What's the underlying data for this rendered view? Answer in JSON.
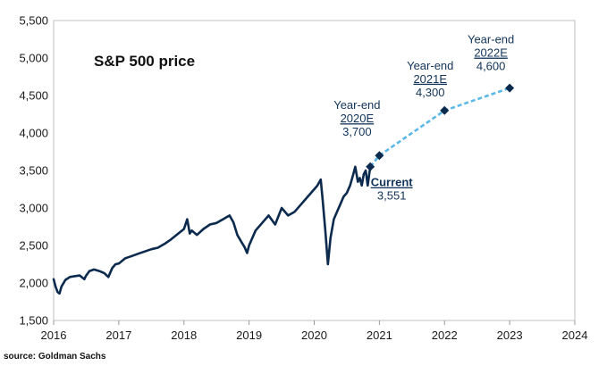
{
  "chart_data": {
    "type": "line",
    "title": "S&P 500 price",
    "source": "source: Goldman Sachs",
    "xlim": [
      2016,
      2024
    ],
    "ylim": [
      1500,
      5500
    ],
    "x_ticks": [
      "2016",
      "2017",
      "2018",
      "2019",
      "2020",
      "2021",
      "2022",
      "2023",
      "2024"
    ],
    "y_ticks": [
      "1,500",
      "2,000",
      "2,500",
      "3,000",
      "3,500",
      "4,000",
      "4,500",
      "5,000",
      "5,500"
    ],
    "colors": {
      "history": "#0b2a4e",
      "forecast": "#5cb8e6",
      "marker": "#0b2a4e",
      "label": "#12345a"
    },
    "series": [
      {
        "name": "S&P 500 price (historical)",
        "style": "solid",
        "x": [
          2016.0,
          2016.03,
          2016.06,
          2016.09,
          2016.12,
          2016.18,
          2016.25,
          2016.32,
          2016.4,
          2016.47,
          2016.5,
          2016.55,
          2016.62,
          2016.7,
          2016.78,
          2016.84,
          2016.9,
          2016.95,
          2017.0,
          2017.1,
          2017.2,
          2017.3,
          2017.4,
          2017.5,
          2017.6,
          2017.7,
          2017.8,
          2017.9,
          2018.0,
          2018.05,
          2018.09,
          2018.12,
          2018.2,
          2018.3,
          2018.4,
          2018.5,
          2018.6,
          2018.7,
          2018.76,
          2018.82,
          2018.88,
          2018.93,
          2018.97,
          2019.0,
          2019.1,
          2019.2,
          2019.3,
          2019.4,
          2019.5,
          2019.6,
          2019.7,
          2019.8,
          2019.9,
          2020.0,
          2020.05,
          2020.1,
          2020.13,
          2020.17,
          2020.21,
          2020.25,
          2020.3,
          2020.35,
          2020.4,
          2020.45,
          2020.5,
          2020.55,
          2020.6,
          2020.63,
          2020.67,
          2020.7,
          2020.73,
          2020.76,
          2020.79,
          2020.82,
          2020.86
        ],
        "y": [
          2050,
          1950,
          1880,
          1860,
          1950,
          2040,
          2080,
          2090,
          2100,
          2050,
          2100,
          2160,
          2180,
          2160,
          2130,
          2080,
          2200,
          2250,
          2260,
          2330,
          2360,
          2390,
          2420,
          2450,
          2470,
          2520,
          2580,
          2650,
          2720,
          2850,
          2660,
          2700,
          2640,
          2720,
          2780,
          2800,
          2850,
          2900,
          2810,
          2640,
          2550,
          2480,
          2400,
          2500,
          2700,
          2800,
          2900,
          2780,
          3000,
          2900,
          2950,
          3050,
          3150,
          3250,
          3300,
          3380,
          3100,
          2700,
          2250,
          2600,
          2850,
          2950,
          3050,
          3150,
          3200,
          3300,
          3450,
          3550,
          3350,
          3400,
          3300,
          3450,
          3500,
          3300,
          3551
        ]
      },
      {
        "name": "Goldman Sachs forecast",
        "style": "dashed",
        "x": [
          2020.86,
          2021.0,
          2022.0,
          2023.0
        ],
        "y": [
          3551,
          3700,
          4300,
          4600
        ]
      }
    ],
    "markers": [
      {
        "x": 2020.86,
        "y": 3551
      },
      {
        "x": 2021.0,
        "y": 3700
      },
      {
        "x": 2022.0,
        "y": 4300
      },
      {
        "x": 2023.0,
        "y": 4600
      }
    ],
    "annotations": [
      {
        "id": "current",
        "lines": [
          {
            "text": "Current",
            "bold": true,
            "underline": true
          },
          {
            "text": "3,551"
          }
        ]
      },
      {
        "id": "ye2020",
        "lines": [
          {
            "text": "Year-end"
          },
          {
            "text": "2020E",
            "underline": true
          },
          {
            "text": "3,700"
          }
        ]
      },
      {
        "id": "ye2021",
        "lines": [
          {
            "text": "Year-end"
          },
          {
            "text": "2021E",
            "underline": true
          },
          {
            "text": "4,300"
          }
        ]
      },
      {
        "id": "ye2022",
        "lines": [
          {
            "text": "Year-end"
          },
          {
            "text": "2022E",
            "underline": true
          },
          {
            "text": "4,600"
          }
        ]
      }
    ]
  }
}
